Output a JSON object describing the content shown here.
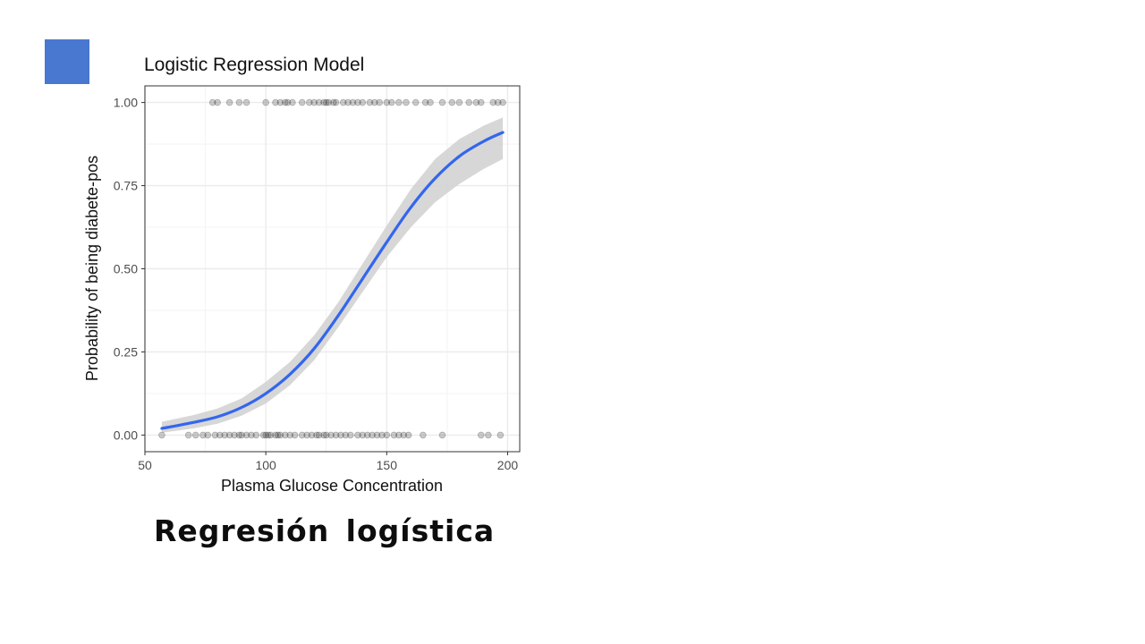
{
  "slide": {
    "caption": "Regresión logística",
    "accent_color": "#4878d0"
  },
  "chart_data": {
    "type": "scatter",
    "title": "Logistic Regression Model",
    "xlabel": "Plasma Glucose Concentration",
    "ylabel": "Probability of being diabete-pos",
    "xlim": [
      50,
      205
    ],
    "ylim": [
      -0.05,
      1.05
    ],
    "x_ticks": [
      50,
      100,
      150,
      200
    ],
    "x_tick_labels": [
      "50",
      "100",
      "150",
      "200"
    ],
    "y_ticks": [
      0,
      0.25,
      0.5,
      0.75,
      1
    ],
    "y_tick_labels": [
      "0.00",
      "0.25",
      "0.50",
      "0.75",
      "1.00"
    ],
    "grid": true,
    "legend": "none",
    "colors": {
      "fit": "#3366ee",
      "band": "#d3d3d3",
      "points": "#000000",
      "grid": "#ebebeb"
    },
    "series": [
      {
        "kind": "points",
        "y": 1,
        "x": [
          78,
          80,
          85,
          89,
          92,
          100,
          104,
          106,
          108,
          109,
          111,
          115,
          118,
          120,
          122,
          124,
          125,
          126,
          128,
          129,
          132,
          134,
          136,
          138,
          140,
          143,
          145,
          147,
          150,
          152,
          155,
          158,
          162,
          166,
          168,
          173,
          177,
          180,
          184,
          187,
          189,
          194,
          196,
          198
        ]
      },
      {
        "kind": "points",
        "y": 0,
        "x": [
          57,
          68,
          71,
          74,
          76,
          79,
          81,
          83,
          85,
          87,
          89,
          90,
          92,
          94,
          96,
          99,
          100,
          101,
          102,
          104,
          105,
          106,
          108,
          110,
          112,
          115,
          117,
          119,
          121,
          122,
          124,
          125,
          127,
          129,
          131,
          133,
          135,
          138,
          140,
          142,
          144,
          146,
          148,
          150,
          153,
          155,
          157,
          159,
          165,
          173,
          189,
          192,
          197
        ]
      },
      {
        "kind": "fit",
        "x": [
          57,
          70,
          80,
          90,
          100,
          110,
          120,
          130,
          140,
          150,
          160,
          170,
          180,
          190,
          198
        ],
        "y": [
          0.02,
          0.038,
          0.055,
          0.083,
          0.125,
          0.183,
          0.26,
          0.36,
          0.47,
          0.58,
          0.685,
          0.772,
          0.838,
          0.883,
          0.91
        ],
        "lower": [
          0.007,
          0.02,
          0.034,
          0.058,
          0.095,
          0.15,
          0.225,
          0.325,
          0.43,
          0.535,
          0.625,
          0.7,
          0.755,
          0.8,
          0.83
        ],
        "upper": [
          0.04,
          0.06,
          0.08,
          0.11,
          0.16,
          0.22,
          0.3,
          0.4,
          0.515,
          0.63,
          0.74,
          0.83,
          0.89,
          0.93,
          0.955
        ]
      }
    ]
  }
}
